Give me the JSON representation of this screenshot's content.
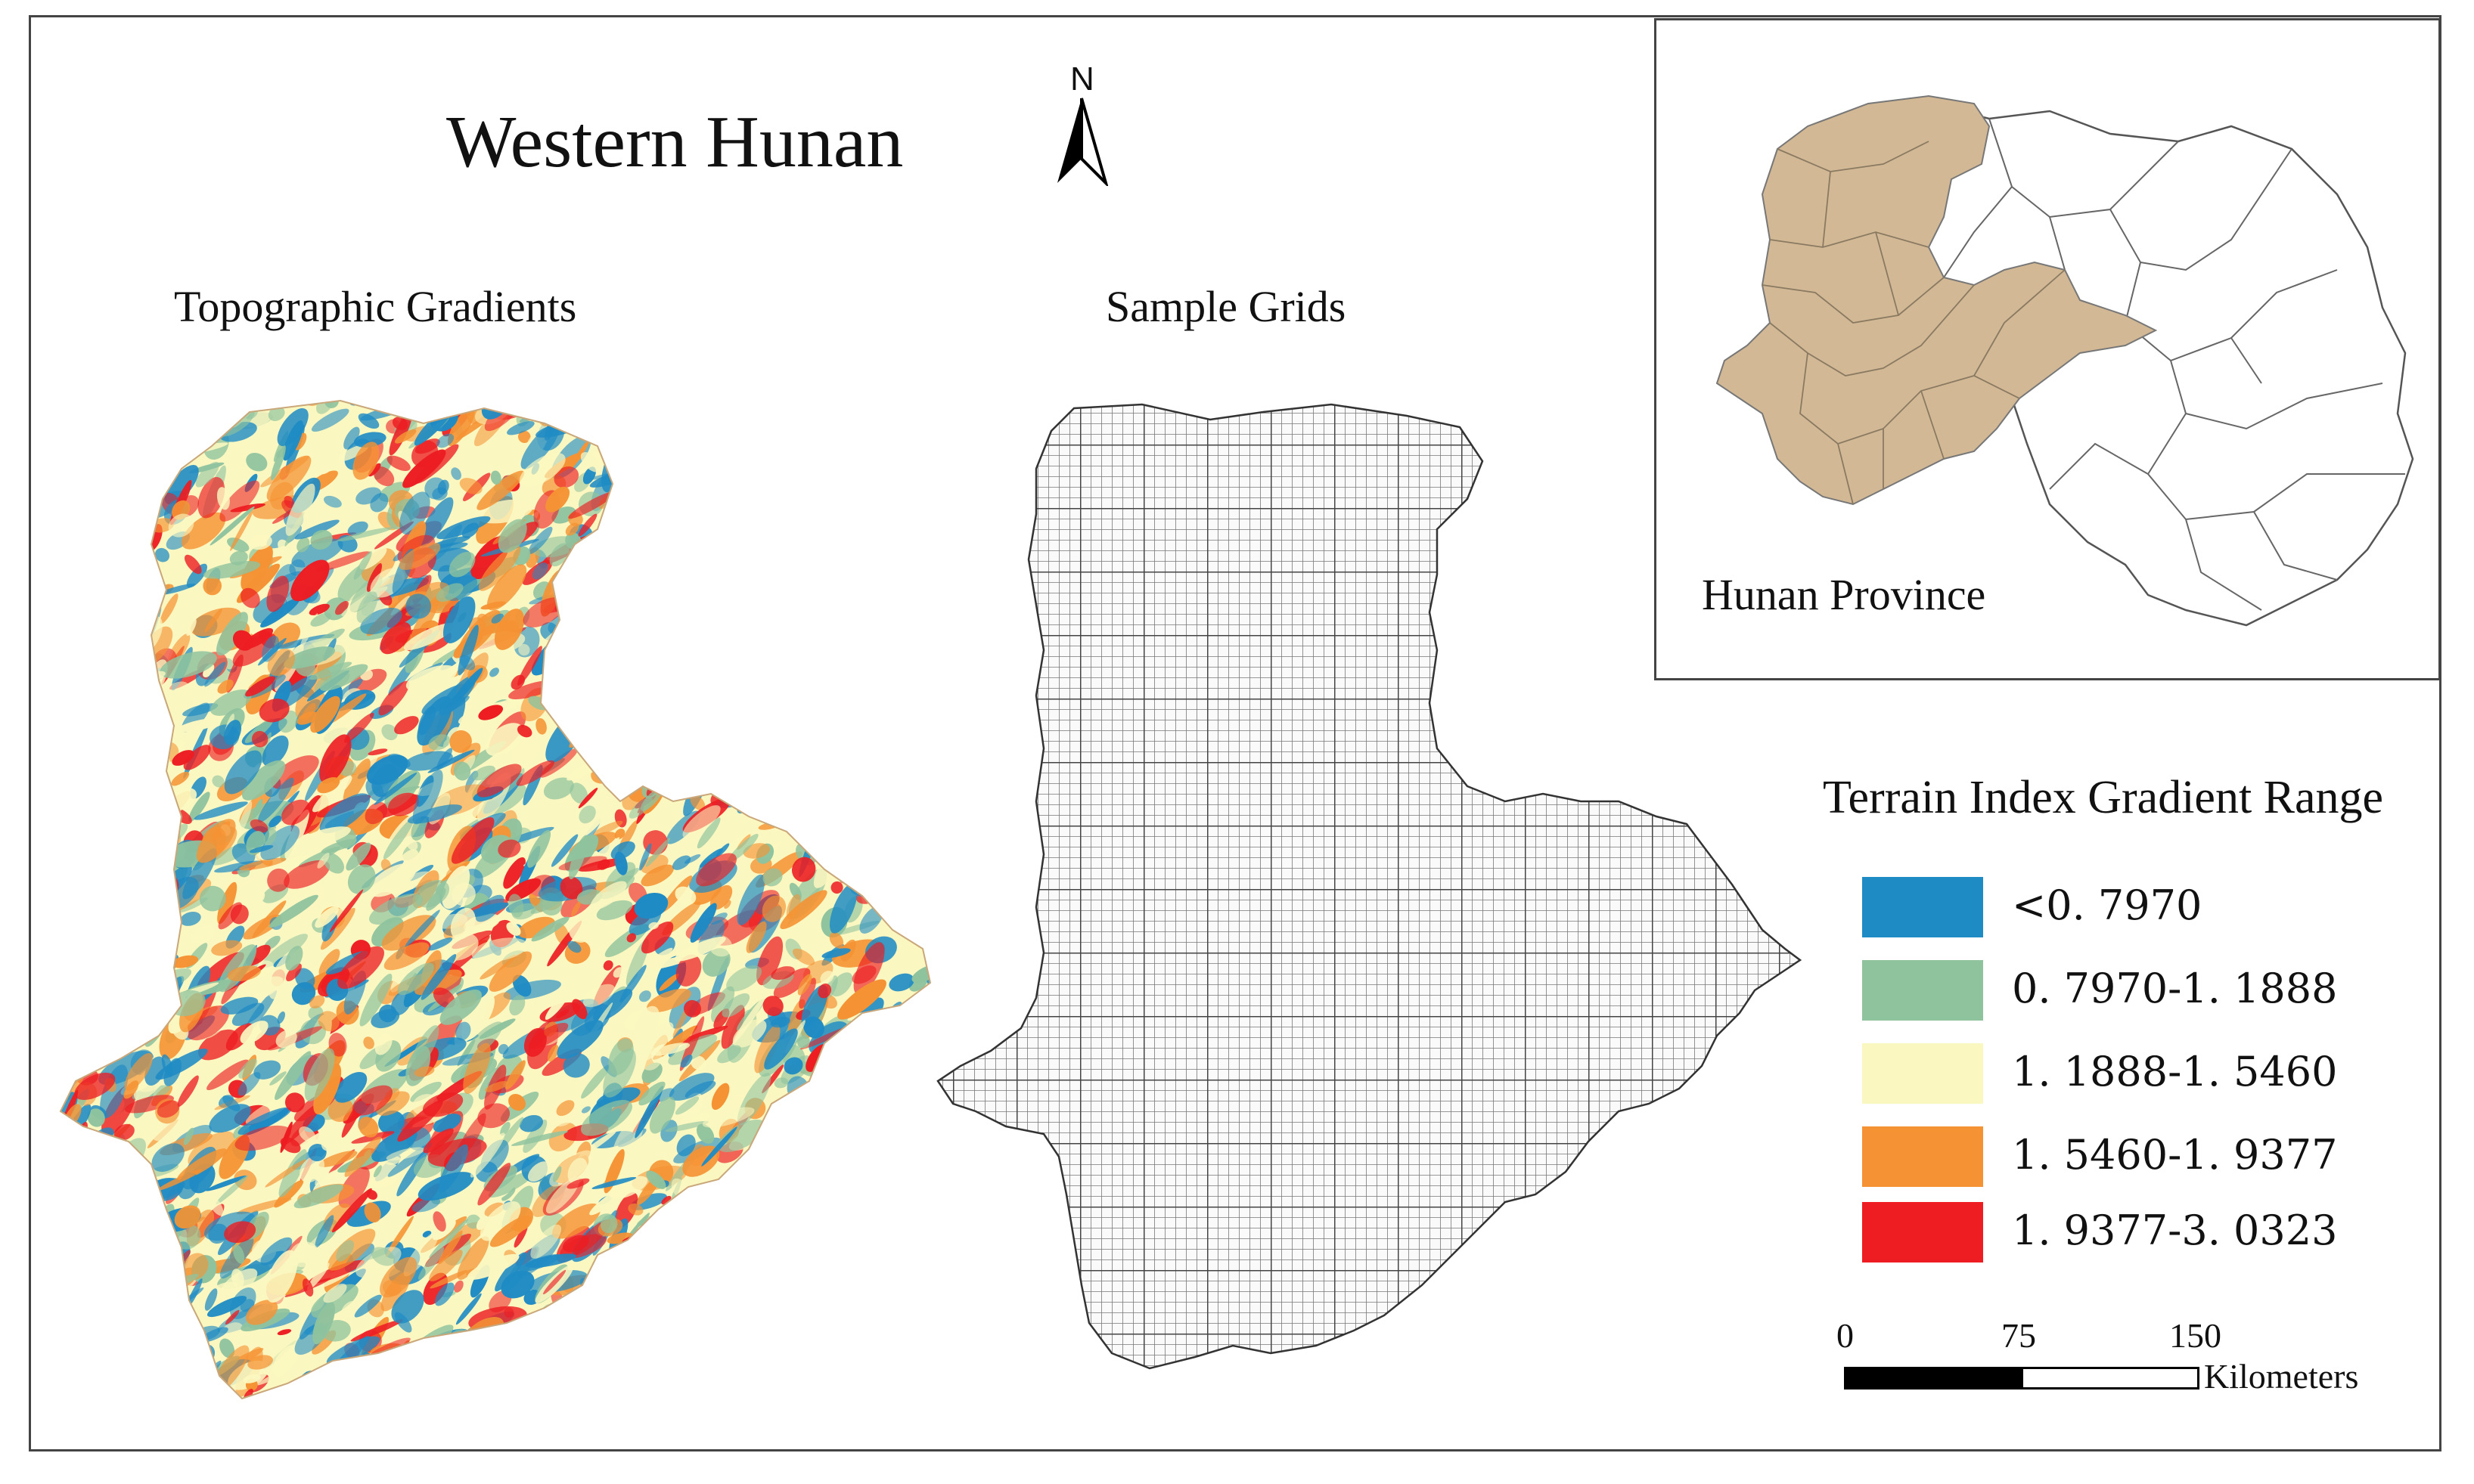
{
  "title": "Western Hunan",
  "north_label": "N",
  "left_panel": {
    "title": "Topographic Gradients"
  },
  "middle_panel": {
    "title": "Sample Grids"
  },
  "inset": {
    "label": "Hunan Province",
    "colors": {
      "western": "#d2b895",
      "other": "#ffffff",
      "border": "#555555"
    }
  },
  "legend": {
    "title": "Terrain Index Gradient Range",
    "items": [
      {
        "label": "<0. 7970",
        "color": "#1f8bc4"
      },
      {
        "label": "0. 7970-1. 1888",
        "color": "#8fc39e"
      },
      {
        "label": "1. 1888-1. 5460",
        "color": "#fbf7c0"
      },
      {
        "label": "1. 5460-1. 9377",
        "color": "#f59334"
      },
      {
        "label": "1. 9377-3. 0323",
        "color": "#ed1d22"
      }
    ]
  },
  "scale_bar": {
    "ticks": [
      "0",
      "75",
      "150"
    ],
    "unit": "Kilometers"
  }
}
